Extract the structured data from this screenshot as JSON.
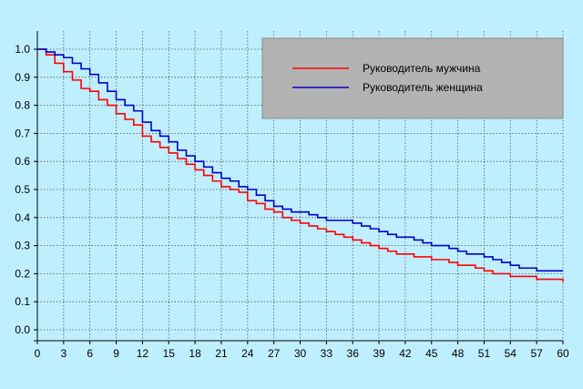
{
  "chart_data": {
    "type": "line",
    "title": "",
    "xlabel": "",
    "ylabel": "",
    "xlim": [
      0,
      60
    ],
    "ylim": [
      0,
      1.0
    ],
    "x_ticks": [
      0,
      3,
      6,
      9,
      12,
      15,
      18,
      21,
      24,
      27,
      30,
      33,
      36,
      39,
      42,
      45,
      48,
      51,
      54,
      57,
      60
    ],
    "y_ticks": [
      0.0,
      0.1,
      0.2,
      0.3,
      0.4,
      0.5,
      0.6,
      0.7,
      0.8,
      0.9,
      1.0
    ],
    "y_tick_labels": [
      "0.0",
      "0.1",
      "0.2",
      "0.3",
      "0.4",
      "0.5",
      "0.6",
      "0.7",
      "0.8",
      "0.9",
      "1.0"
    ],
    "grid": true,
    "legend_position": "top-right",
    "legend_background": "#b3b3b3",
    "series": [
      {
        "name": "Руководитель мужчина",
        "color": "#ff0000",
        "step": true,
        "x": [
          0,
          1,
          2,
          3,
          4,
          5,
          6,
          7,
          8,
          9,
          10,
          11,
          12,
          13,
          14,
          15,
          16,
          17,
          18,
          19,
          20,
          21,
          22,
          23,
          24,
          25,
          26,
          27,
          28,
          29,
          30,
          31,
          32,
          33,
          34,
          35,
          36,
          37,
          38,
          39,
          40,
          41,
          42,
          43,
          44,
          45,
          46,
          47,
          48,
          49,
          50,
          51,
          52,
          53,
          54,
          55,
          56,
          57,
          58,
          59,
          60
        ],
        "y": [
          1.0,
          0.98,
          0.95,
          0.92,
          0.89,
          0.86,
          0.85,
          0.82,
          0.8,
          0.77,
          0.75,
          0.73,
          0.69,
          0.67,
          0.65,
          0.63,
          0.61,
          0.59,
          0.57,
          0.55,
          0.53,
          0.51,
          0.5,
          0.49,
          0.46,
          0.45,
          0.43,
          0.42,
          0.4,
          0.39,
          0.38,
          0.37,
          0.36,
          0.35,
          0.34,
          0.33,
          0.32,
          0.31,
          0.3,
          0.29,
          0.28,
          0.27,
          0.27,
          0.26,
          0.26,
          0.25,
          0.25,
          0.24,
          0.23,
          0.23,
          0.22,
          0.21,
          0.2,
          0.2,
          0.19,
          0.19,
          0.19,
          0.18,
          0.18,
          0.18,
          0.17
        ]
      },
      {
        "name": "Руководитель женщина",
        "color": "#0000cc",
        "step": true,
        "x": [
          0,
          1,
          2,
          3,
          4,
          5,
          6,
          7,
          8,
          9,
          10,
          11,
          12,
          13,
          14,
          15,
          16,
          17,
          18,
          19,
          20,
          21,
          22,
          23,
          24,
          25,
          26,
          27,
          28,
          29,
          30,
          31,
          32,
          33,
          34,
          35,
          36,
          37,
          38,
          39,
          40,
          41,
          42,
          43,
          44,
          45,
          46,
          47,
          48,
          49,
          50,
          51,
          52,
          53,
          54,
          55,
          56,
          57,
          58,
          59,
          60
        ],
        "y": [
          1.0,
          0.99,
          0.98,
          0.97,
          0.95,
          0.93,
          0.91,
          0.88,
          0.85,
          0.82,
          0.8,
          0.78,
          0.74,
          0.71,
          0.69,
          0.67,
          0.64,
          0.62,
          0.6,
          0.58,
          0.56,
          0.54,
          0.53,
          0.51,
          0.5,
          0.48,
          0.46,
          0.44,
          0.43,
          0.42,
          0.42,
          0.41,
          0.4,
          0.39,
          0.39,
          0.39,
          0.38,
          0.37,
          0.36,
          0.35,
          0.34,
          0.33,
          0.33,
          0.32,
          0.31,
          0.3,
          0.3,
          0.29,
          0.28,
          0.27,
          0.27,
          0.26,
          0.25,
          0.24,
          0.23,
          0.22,
          0.22,
          0.21,
          0.21,
          0.21,
          0.21
        ]
      }
    ]
  }
}
